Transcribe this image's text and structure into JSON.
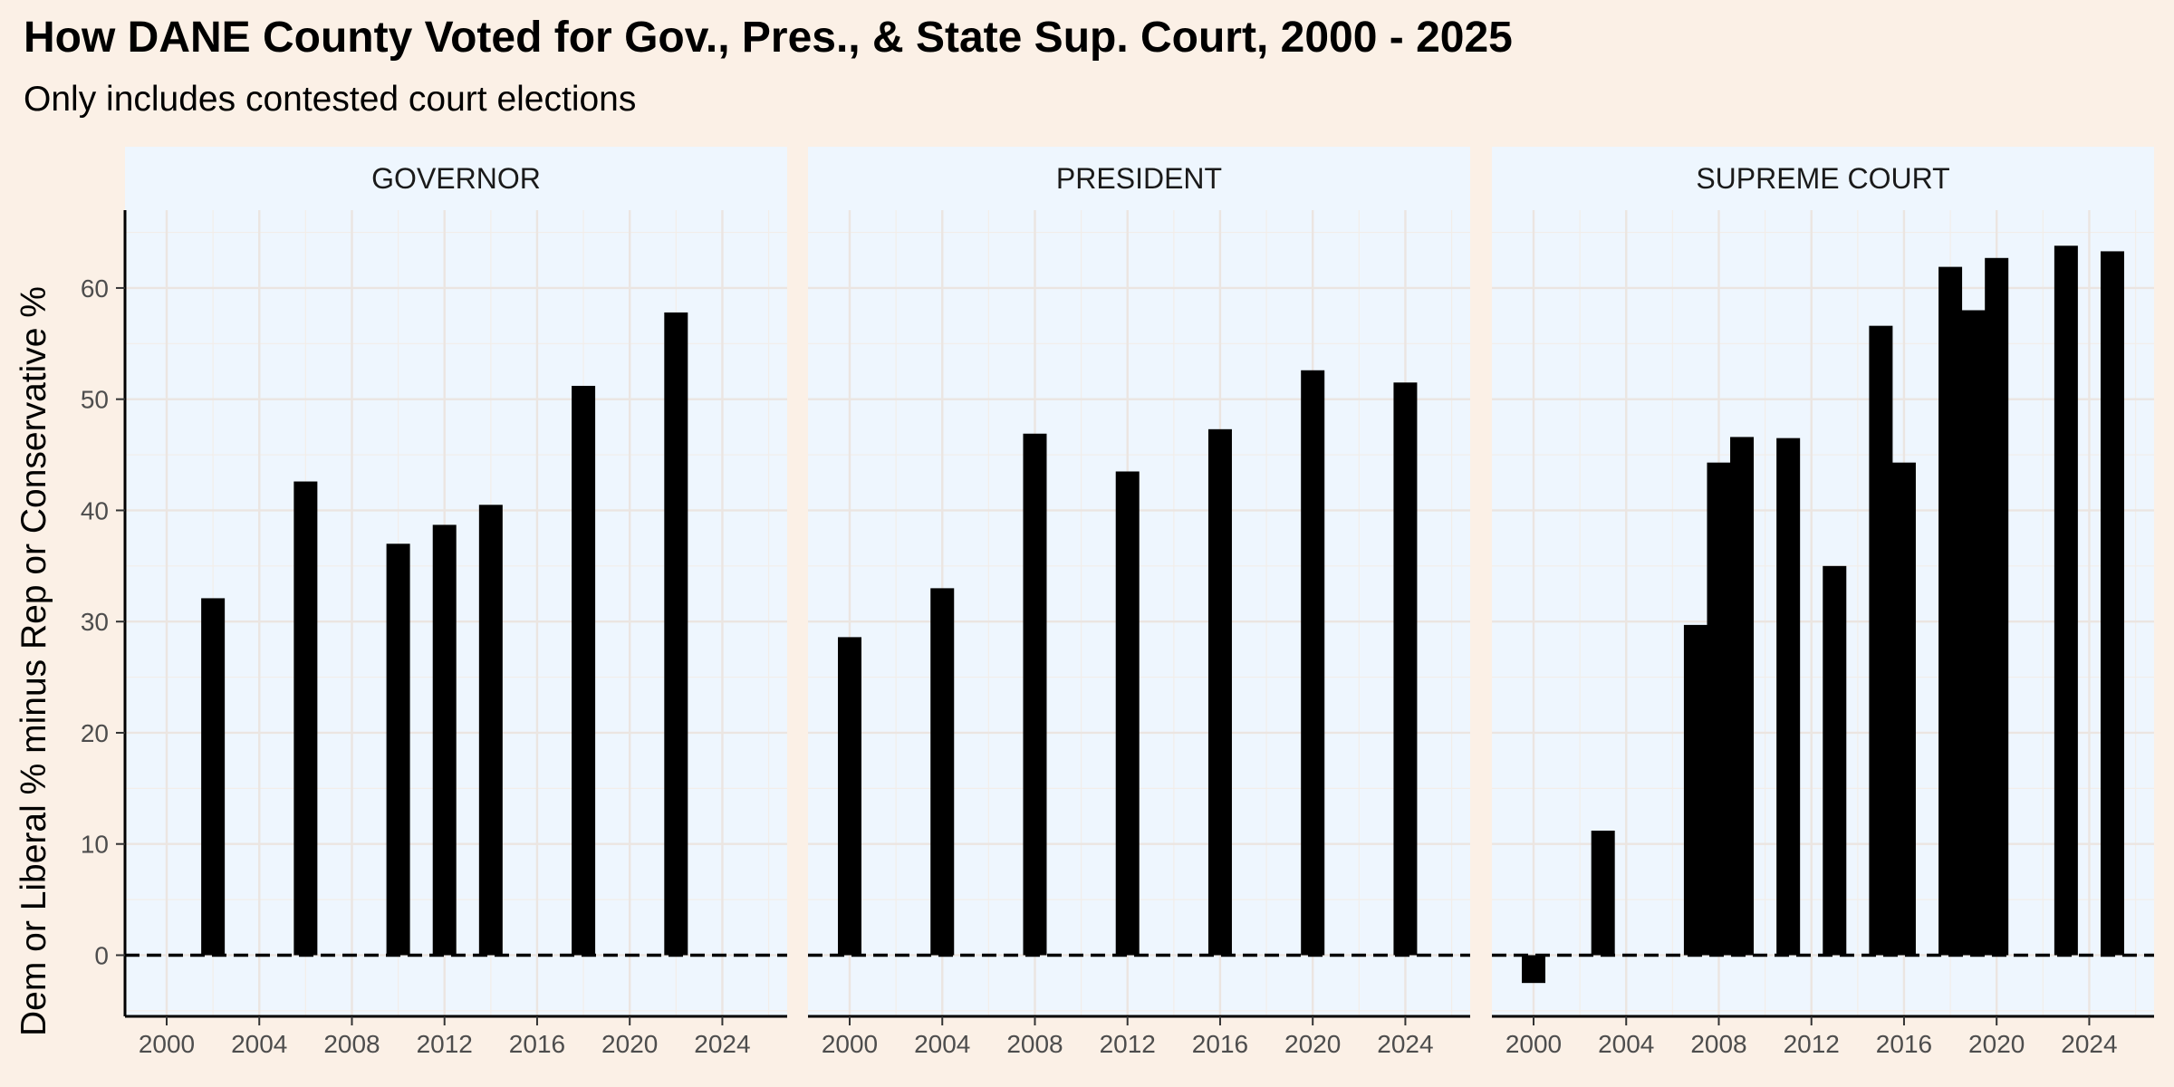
{
  "chart_data": {
    "type": "bar",
    "title": "How DANE County Voted for Gov., Pres., & State Sup. Court, 2000 - 2025",
    "subtitle": "Only includes contested court elections",
    "ylabel": "Dem or Liberal % minus Rep or Conservative %",
    "xlabel": "",
    "ylim": [
      -5.5,
      67
    ],
    "xlim": [
      1998.2,
      2026.8
    ],
    "x_ticks": [
      2000,
      2004,
      2008,
      2012,
      2016,
      2020,
      2024
    ],
    "y_ticks": [
      0,
      10,
      20,
      30,
      40,
      50,
      60
    ],
    "reference_line": {
      "y": 0,
      "style": "dashed"
    },
    "grid": true,
    "bar_color": "#000000",
    "panel_color": "#eef6fe",
    "panels": [
      {
        "name": "GOVERNOR",
        "x": [
          2002,
          2006,
          2010,
          2012,
          2014,
          2018,
          2022
        ],
        "values": [
          32.1,
          42.6,
          37.0,
          38.7,
          40.5,
          51.2,
          57.8
        ]
      },
      {
        "name": "PRESIDENT",
        "x": [
          2000,
          2004,
          2008,
          2012,
          2016,
          2020,
          2024
        ],
        "values": [
          28.6,
          33.0,
          46.9,
          43.5,
          47.3,
          52.6,
          51.5
        ]
      },
      {
        "name": "SUPREME COURT",
        "x": [
          2000,
          2003,
          2007,
          2008,
          2009,
          2011,
          2013,
          2015,
          2016,
          2018,
          2019,
          2020,
          2023,
          2025
        ],
        "values": [
          -2.5,
          11.2,
          29.7,
          44.3,
          46.6,
          46.5,
          35.0,
          56.6,
          44.3,
          61.9,
          58.0,
          62.7,
          63.8,
          63.3
        ]
      }
    ]
  }
}
